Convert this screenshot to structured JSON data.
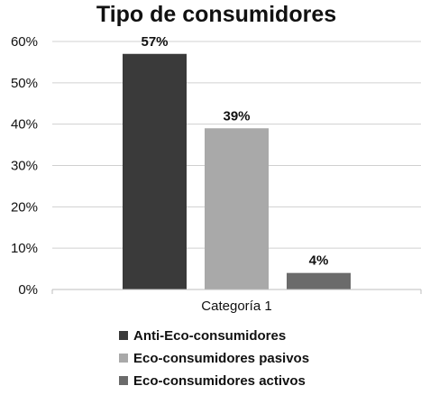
{
  "chart_data": {
    "type": "bar",
    "title": "Tipo de consumidores",
    "categories": [
      "Categoría 1"
    ],
    "series": [
      {
        "name": "Anti-Eco-consumidores",
        "values": [
          57
        ],
        "label": "57%",
        "color": "#3a3a3a"
      },
      {
        "name": "Eco-consumidores pasivos",
        "values": [
          39
        ],
        "label": "39%",
        "color": "#a9a9a9"
      },
      {
        "name": "Eco-consumidores activos",
        "values": [
          4
        ],
        "label": "4%",
        "color": "#6b6b6b"
      }
    ],
    "yticks": [
      "0%",
      "10%",
      "20%",
      "30%",
      "40%",
      "50%",
      "60%"
    ],
    "ylim": [
      0,
      60
    ],
    "grid": true,
    "legend_position": "bottom"
  }
}
